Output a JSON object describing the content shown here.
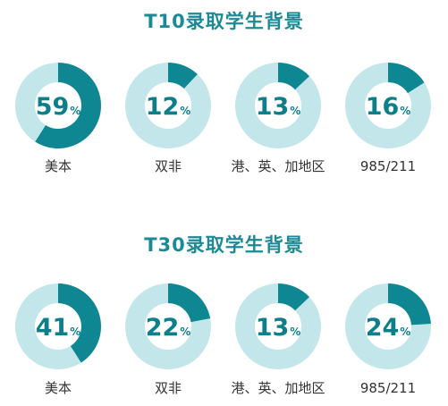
{
  "chart_data": [
    {
      "type": "pie",
      "title": "T10录取学生背景",
      "categories": [
        "美本",
        "双非",
        "港、英、加地区",
        "985/211"
      ],
      "values": [
        59,
        12,
        13,
        16
      ],
      "unit": "%"
    },
    {
      "type": "pie",
      "title": "T30录取学生背景",
      "categories": [
        "美本",
        "双非",
        "港、英、加地区",
        "985/211"
      ],
      "values": [
        41,
        22,
        13,
        24
      ],
      "unit": "%"
    }
  ],
  "colors": {
    "filled": "#0f8792",
    "track": "#c3e6ea",
    "title": "#1b8a96",
    "label": "#333333"
  }
}
